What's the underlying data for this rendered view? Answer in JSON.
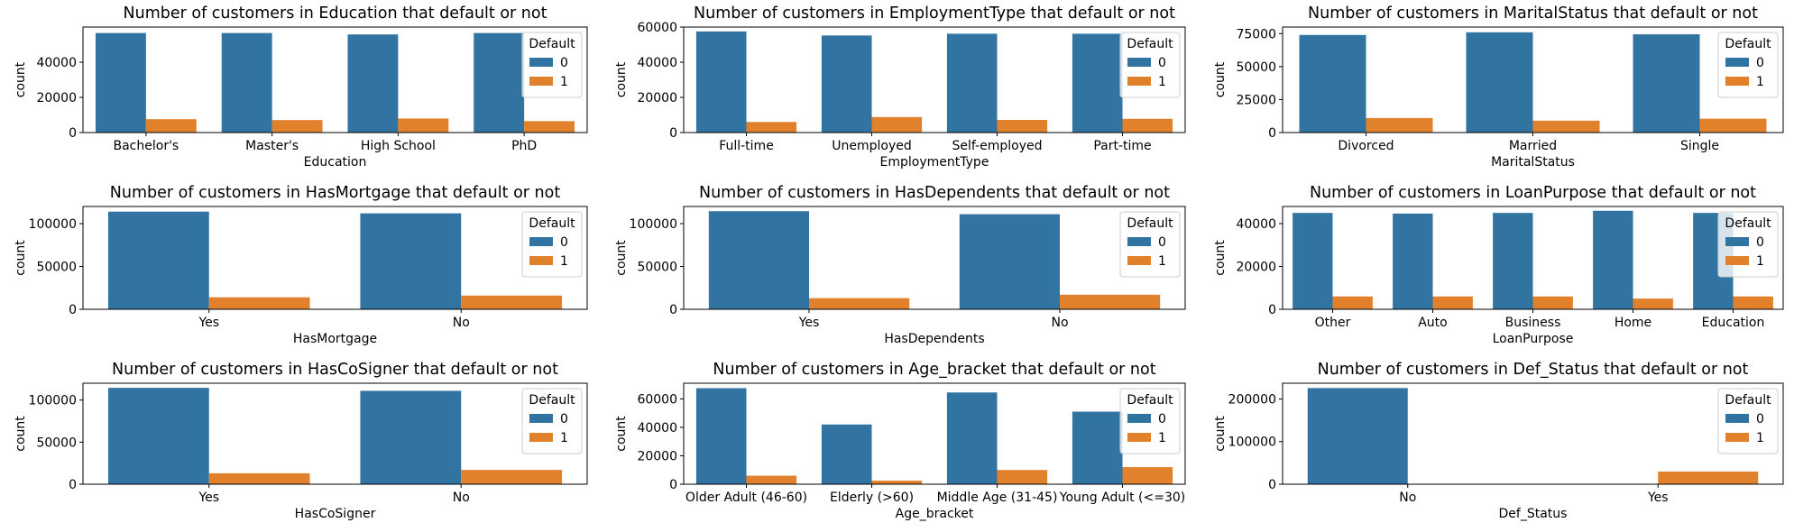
{
  "colors": {
    "default_0": "#3274a1",
    "default_1": "#e1812c"
  },
  "chart_data": [
    {
      "type": "bar",
      "title": "Number of customers in Education that default or not",
      "xlabel": "Education",
      "ylabel": "count",
      "categories": [
        "Bachelor's",
        "Master's",
        "High School",
        "PhD"
      ],
      "ylim": [
        0,
        60000
      ],
      "yticks": [
        0,
        20000,
        40000
      ],
      "legend": {
        "title": "Default",
        "loc": "upper-right"
      },
      "series": [
        {
          "name": "0",
          "values": [
            56600,
            56600,
            55800,
            56600
          ]
        },
        {
          "name": "1",
          "values": [
            7600,
            7100,
            8000,
            6500
          ]
        }
      ]
    },
    {
      "type": "bar",
      "title": "Number of customers in EmploymentType that default or not",
      "xlabel": "EmploymentType",
      "ylabel": "count",
      "categories": [
        "Full-time",
        "Unemployed",
        "Self-employed",
        "Part-time"
      ],
      "ylim": [
        0,
        60000
      ],
      "yticks": [
        0,
        20000,
        40000,
        60000
      ],
      "legend": {
        "title": "Default",
        "loc": "upper-right"
      },
      "series": [
        {
          "name": "0",
          "values": [
            57500,
            55200,
            56200,
            56200
          ]
        },
        {
          "name": "1",
          "values": [
            6000,
            8800,
            7200,
            7800
          ]
        }
      ]
    },
    {
      "type": "bar",
      "title": "Number of customers in MaritalStatus that default or not",
      "xlabel": "MaritalStatus",
      "ylabel": "count",
      "categories": [
        "Divorced",
        "Married",
        "Single"
      ],
      "ylim": [
        0,
        80000
      ],
      "yticks": [
        0,
        25000,
        50000,
        75000
      ],
      "legend": {
        "title": "Default",
        "loc": "upper-right"
      },
      "series": [
        {
          "name": "0",
          "values": [
            74000,
            76000,
            74500
          ]
        },
        {
          "name": "1",
          "values": [
            11000,
            9000,
            10500
          ]
        }
      ]
    },
    {
      "type": "bar",
      "title": "Number of customers in HasMortgage that default or not",
      "xlabel": "HasMortgage",
      "ylabel": "count",
      "categories": [
        "Yes",
        "No"
      ],
      "ylim": [
        0,
        120000
      ],
      "yticks": [
        0,
        50000,
        100000
      ],
      "legend": {
        "title": "Default",
        "loc": "upper-right"
      },
      "series": [
        {
          "name": "0",
          "values": [
            114000,
            112000
          ]
        },
        {
          "name": "1",
          "values": [
            14000,
            16000
          ]
        }
      ]
    },
    {
      "type": "bar",
      "title": "Number of customers in HasDependents that default or not",
      "xlabel": "HasDependents",
      "ylabel": "count",
      "categories": [
        "Yes",
        "No"
      ],
      "ylim": [
        0,
        120000
      ],
      "yticks": [
        0,
        50000,
        100000
      ],
      "legend": {
        "title": "Default",
        "loc": "upper-right"
      },
      "series": [
        {
          "name": "0",
          "values": [
            114500,
            111000
          ]
        },
        {
          "name": "1",
          "values": [
            13000,
            17000
          ]
        }
      ]
    },
    {
      "type": "bar",
      "title": "Number of customers in LoanPurpose that default or not",
      "xlabel": "LoanPurpose",
      "ylabel": "count",
      "categories": [
        "Other",
        "Auto",
        "Business",
        "Home",
        "Education"
      ],
      "ylim": [
        0,
        48000
      ],
      "yticks": [
        0,
        20000,
        40000
      ],
      "legend": {
        "title": "Default",
        "loc": "upper-right"
      },
      "series": [
        {
          "name": "0",
          "values": [
            45000,
            44700,
            45000,
            46000,
            45000
          ]
        },
        {
          "name": "1",
          "values": [
            6000,
            6000,
            6000,
            5000,
            6000
          ]
        }
      ]
    },
    {
      "type": "bar",
      "title": "Number of customers in HasCoSigner that default or not",
      "xlabel": "HasCoSigner",
      "ylabel": "count",
      "categories": [
        "Yes",
        "No"
      ],
      "ylim": [
        0,
        120000
      ],
      "yticks": [
        0,
        50000,
        100000
      ],
      "legend": {
        "title": "Default",
        "loc": "upper-right"
      },
      "series": [
        {
          "name": "0",
          "values": [
            114500,
            111000
          ]
        },
        {
          "name": "1",
          "values": [
            13000,
            17000
          ]
        }
      ]
    },
    {
      "type": "bar",
      "title": "Number of customers in Age_bracket that default or not",
      "xlabel": "Age_bracket",
      "ylabel": "count",
      "categories": [
        "Older Adult (46-60)",
        "Elderly (>60)",
        "Middle Age (31-45)",
        "Young Adult (<=30)"
      ],
      "ylim": [
        0,
        71000
      ],
      "yticks": [
        0,
        20000,
        40000,
        60000
      ],
      "legend": {
        "title": "Default",
        "loc": "upper-right"
      },
      "series": [
        {
          "name": "0",
          "values": [
            67500,
            42000,
            64500,
            51000
          ]
        },
        {
          "name": "1",
          "values": [
            6000,
            2500,
            10000,
            12000
          ]
        }
      ]
    },
    {
      "type": "bar",
      "title": "Number of customers in Def_Status that default or not",
      "xlabel": "Def_Status",
      "ylabel": "count",
      "categories": [
        "No",
        "Yes"
      ],
      "ylim": [
        0,
        237000
      ],
      "yticks": [
        0,
        100000,
        200000
      ],
      "legend": {
        "title": "Default",
        "loc": "upper-right"
      },
      "series": [
        {
          "name": "0",
          "values": [
            225700,
            0
          ]
        },
        {
          "name": "1",
          "values": [
            0,
            29700
          ]
        }
      ]
    }
  ]
}
